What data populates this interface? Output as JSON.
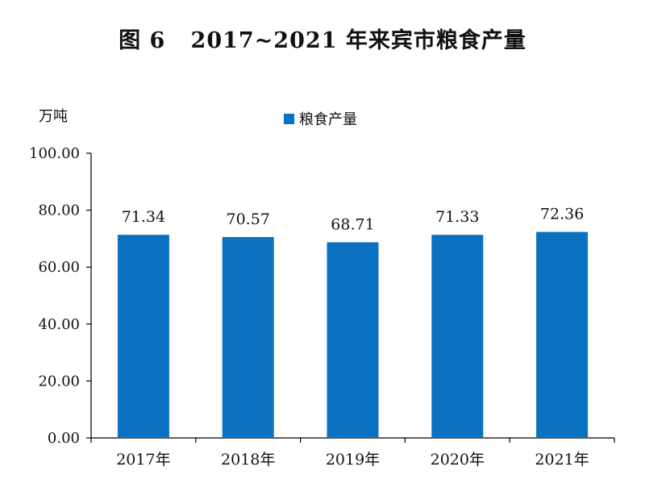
{
  "chart_data": {
    "type": "bar",
    "title": "图 6   2017~2021 年来宾市粮食产量",
    "unit_label": "万吨",
    "legend": [
      "粮食产量"
    ],
    "categories": [
      "2017年",
      "2018年",
      "2019年",
      "2020年",
      "2021年"
    ],
    "series": [
      {
        "name": "粮食产量",
        "values": [
          71.34,
          70.57,
          68.71,
          71.33,
          72.36
        ],
        "color": "#0a70c0"
      }
    ],
    "value_labels": [
      "71.34",
      "70.57",
      "68.71",
      "71.33",
      "72.36"
    ],
    "ylim": [
      0,
      100
    ],
    "yticks": [
      "0.00",
      "20.00",
      "40.00",
      "60.00",
      "80.00",
      "100.00"
    ],
    "grid": false,
    "legend_position": "top-center"
  }
}
